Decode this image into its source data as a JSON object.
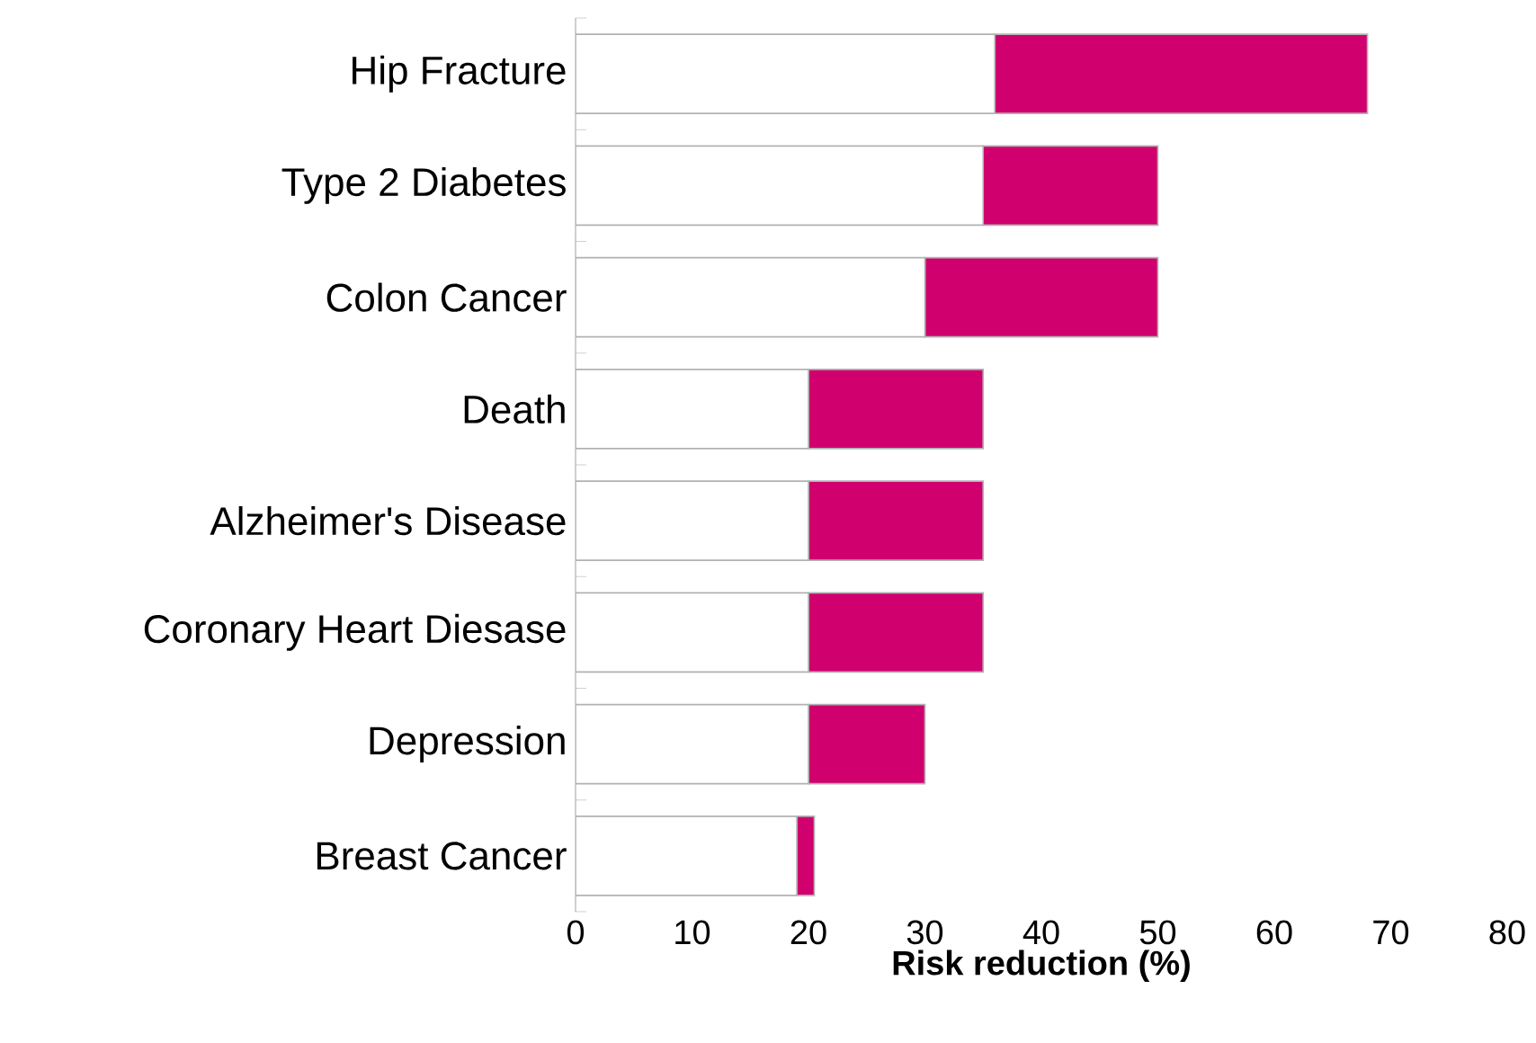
{
  "chart_data": {
    "type": "bar",
    "orientation": "horizontal",
    "stacked": true,
    "xlabel": "**Risk reduction (%)**",
    "categories": [
      "Hip Fracture",
      "Type 2 Diabetes",
      "Colon Cancer",
      "Death",
      "Alzheimer's Disease",
      "Coronary Heart Diesase",
      "Depression",
      "Breast Cancer"
    ],
    "series": [
      {
        "color": "#ffffff",
        "values": [
          36,
          35,
          30,
          20,
          20,
          20,
          20,
          19
        ]
      },
      {
        "color": "#d0006f",
        "values": [
          32,
          15,
          20,
          15,
          15,
          15,
          10,
          1.5
        ]
      }
    ],
    "xlim": [
      0,
      80
    ],
    "xticks": [
      0,
      10,
      20,
      30,
      40,
      50,
      60,
      70,
      80
    ]
  }
}
